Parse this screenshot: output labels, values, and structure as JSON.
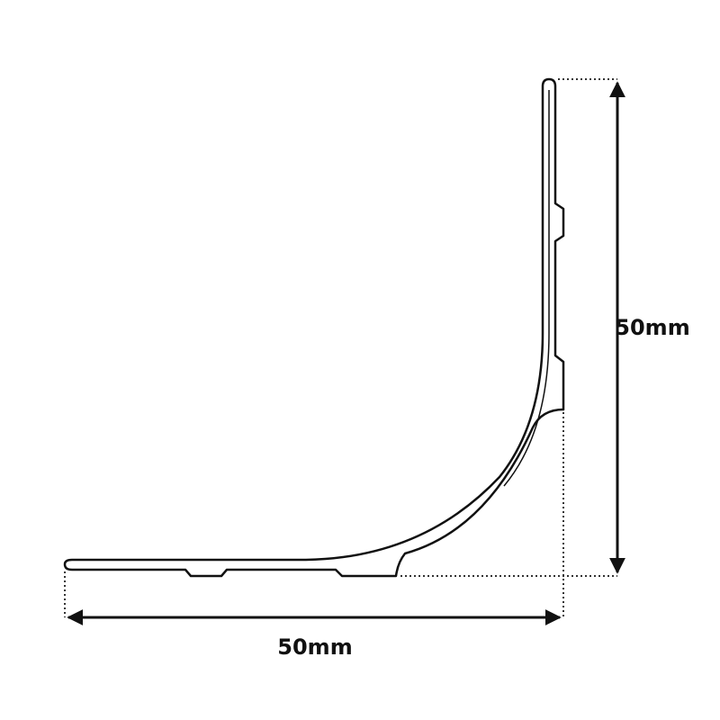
{
  "dimensions": {
    "height": {
      "label": "50mm"
    },
    "width": {
      "label": "50mm"
    }
  }
}
